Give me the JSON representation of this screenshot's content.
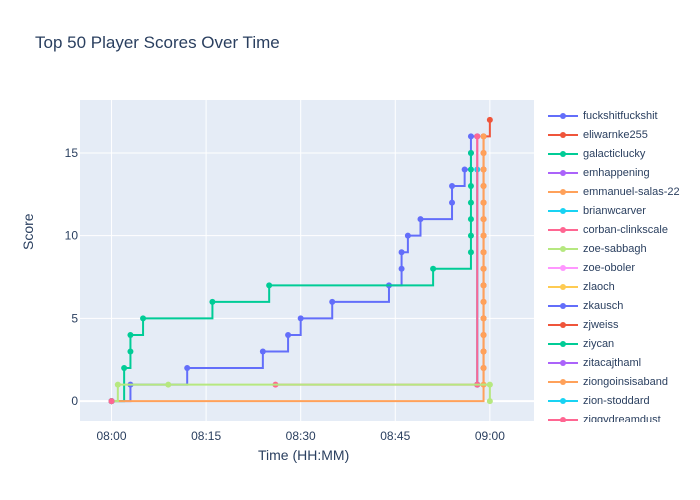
{
  "chart_data": {
    "type": "line",
    "line_shape": "step",
    "title": "Top 50 Player Scores Over Time",
    "xlabel": "Time (HH:MM)",
    "ylabel": "Score",
    "x_ticks": [
      "08:00",
      "08:15",
      "08:30",
      "08:45",
      "09:00"
    ],
    "y_ticks": [
      0,
      5,
      10,
      15
    ],
    "xlim": [
      "07:55",
      "09:07"
    ],
    "ylim": [
      -1.2,
      18.2
    ],
    "grid": true,
    "legend_position": "right",
    "series": [
      {
        "name": "fuckshitfuckshit",
        "color": "#636efa",
        "points": [
          [
            "08:00",
            0
          ],
          [
            "08:03",
            1
          ],
          [
            "08:12",
            2
          ],
          [
            "08:24",
            3
          ],
          [
            "08:28",
            4
          ],
          [
            "08:30",
            5
          ],
          [
            "08:35",
            6
          ],
          [
            "08:44",
            7
          ],
          [
            "08:46",
            8
          ],
          [
            "08:46",
            9
          ],
          [
            "08:47",
            10
          ],
          [
            "08:49",
            11
          ],
          [
            "08:54",
            12
          ],
          [
            "08:54",
            13
          ],
          [
            "08:56",
            14
          ],
          [
            "08:57",
            15
          ],
          [
            "08:57",
            16
          ],
          [
            "08:58",
            16
          ]
        ]
      },
      {
        "name": "eliwarnke255",
        "color": "#ef553b",
        "points": [
          [
            "08:58",
            1
          ],
          [
            "08:59",
            2
          ],
          [
            "08:59",
            3
          ],
          [
            "08:59",
            4
          ],
          [
            "08:59",
            5
          ],
          [
            "08:59",
            6
          ],
          [
            "08:59",
            7
          ],
          [
            "08:59",
            8
          ],
          [
            "08:59",
            9
          ],
          [
            "08:59",
            10
          ],
          [
            "08:59",
            11
          ],
          [
            "08:59",
            12
          ],
          [
            "08:59",
            13
          ],
          [
            "08:59",
            14
          ],
          [
            "08:59",
            15
          ],
          [
            "08:59",
            16
          ],
          [
            "09:00",
            17
          ]
        ]
      },
      {
        "name": "galacticlucky",
        "color": "#00cc96",
        "points": [
          [
            "08:00",
            0
          ],
          [
            "08:02",
            2
          ],
          [
            "08:03",
            3
          ],
          [
            "08:03",
            4
          ],
          [
            "08:05",
            5
          ],
          [
            "08:16",
            6
          ],
          [
            "08:25",
            7
          ],
          [
            "08:51",
            8
          ],
          [
            "08:57",
            9
          ],
          [
            "08:57",
            10
          ],
          [
            "08:57",
            11
          ],
          [
            "08:57",
            12
          ],
          [
            "08:57",
            13
          ],
          [
            "08:57",
            14
          ],
          [
            "08:57",
            15
          ]
        ]
      },
      {
        "name": "emhappening",
        "color": "#ab63fa",
        "points": [
          [
            "08:58",
            1
          ],
          [
            "08:58",
            16
          ]
        ]
      },
      {
        "name": "emmanuel-salas-22",
        "color": "#ffa15a",
        "points": [
          [
            "08:00",
            0
          ],
          [
            "08:59",
            1
          ],
          [
            "08:59",
            2
          ],
          [
            "08:59",
            3
          ],
          [
            "08:59",
            4
          ],
          [
            "08:59",
            5
          ],
          [
            "08:59",
            6
          ],
          [
            "08:59",
            7
          ],
          [
            "08:59",
            8
          ],
          [
            "08:59",
            9
          ],
          [
            "08:59",
            10
          ],
          [
            "08:59",
            11
          ],
          [
            "08:59",
            12
          ],
          [
            "08:59",
            13
          ],
          [
            "08:59",
            14
          ],
          [
            "08:59",
            15
          ],
          [
            "08:59",
            16
          ]
        ]
      },
      {
        "name": "brianwcarver",
        "color": "#19d3f3",
        "points": [
          [
            "08:58",
            1
          ],
          [
            "08:58",
            14
          ]
        ]
      },
      {
        "name": "corban-clinkscale",
        "color": "#ff6692",
        "points": [
          [
            "08:26",
            1
          ],
          [
            "08:58",
            1
          ],
          [
            "08:58",
            16
          ]
        ]
      },
      {
        "name": "zoe-sabbagh",
        "color": "#b6e880",
        "points": [
          [
            "08:00",
            0
          ],
          [
            "08:01",
            1
          ],
          [
            "08:09",
            1
          ],
          [
            "09:00",
            1
          ],
          [
            "09:00",
            0
          ]
        ]
      },
      {
        "name": "zoe-oboler",
        "color": "#ff97ff",
        "points": [
          [
            "08:00",
            0
          ]
        ]
      },
      {
        "name": "zlaoch",
        "color": "#fecb52",
        "points": [
          [
            "08:00",
            0
          ]
        ]
      },
      {
        "name": "zkausch",
        "color": "#636efa",
        "points": [
          [
            "08:00",
            0
          ]
        ]
      },
      {
        "name": "zjweiss",
        "color": "#ef553b",
        "points": [
          [
            "08:00",
            0
          ]
        ]
      },
      {
        "name": "ziycan",
        "color": "#00cc96",
        "points": [
          [
            "08:00",
            0
          ]
        ]
      },
      {
        "name": "zitacajthaml",
        "color": "#ab63fa",
        "points": [
          [
            "08:00",
            0
          ]
        ]
      },
      {
        "name": "ziongoinsisaband",
        "color": "#ffa15a",
        "points": [
          [
            "08:00",
            0
          ]
        ]
      },
      {
        "name": "zion-stoddard",
        "color": "#19d3f3",
        "points": [
          [
            "08:00",
            0
          ]
        ]
      },
      {
        "name": "ziggydreamdust",
        "color": "#ff6692",
        "points": [
          [
            "08:00",
            0
          ]
        ]
      }
    ]
  }
}
